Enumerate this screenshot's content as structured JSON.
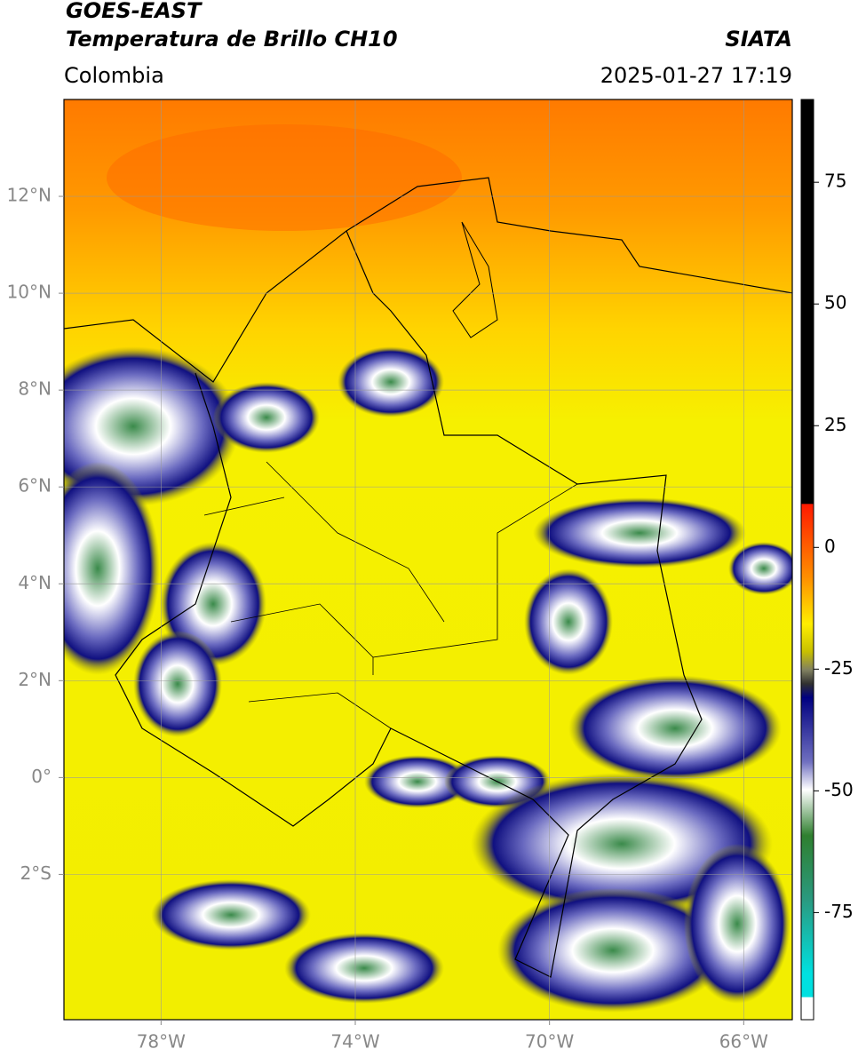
{
  "header": {
    "title": "GOES-EAST",
    "subtitle": "Temperatura de Brillo CH10",
    "source": "SIATA",
    "region": "Colombia",
    "timestamp": "2025-01-27 17:19"
  },
  "map": {
    "xlim": [
      -80,
      -65
    ],
    "ylim": [
      -5,
      14
    ],
    "grid": true,
    "xticks": [
      {
        "value": -78,
        "label": "78°W"
      },
      {
        "value": -74,
        "label": "74°W"
      },
      {
        "value": -70,
        "label": "70°W"
      },
      {
        "value": -66,
        "label": "66°W"
      }
    ],
    "yticks": [
      {
        "value": 12,
        "label": "12°N"
      },
      {
        "value": 10,
        "label": "10°N"
      },
      {
        "value": 8,
        "label": "8°N"
      },
      {
        "value": 6,
        "label": "6°N"
      },
      {
        "value": 4,
        "label": "4°N"
      },
      {
        "value": 2,
        "label": "2°N"
      },
      {
        "value": 0,
        "label": "0°"
      },
      {
        "value": -2,
        "label": "2°S"
      }
    ]
  },
  "colorbar": {
    "lim": [
      -97,
      92
    ],
    "ticks": [
      75,
      50,
      25,
      0,
      -25,
      -50,
      -75
    ]
  }
}
